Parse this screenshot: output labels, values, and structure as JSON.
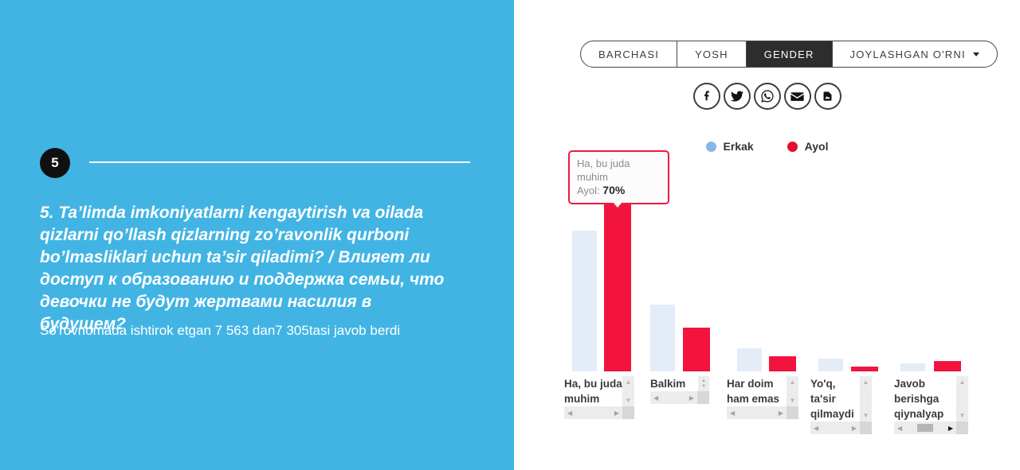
{
  "left_panel": {
    "badge": "5",
    "question": "5. Ta’limda imkoniyatlarni kengaytirish va oilada qizlarni qo’llash qizlarning zo’ravonlik qurboni bo’lmasliklari uchun ta’sir qiladimi? / Влияет ли доступ к образованию и поддержка семьи, что девочки не будут жертвами насилия в будущем?",
    "response_note": "So'rovnomada ishtirok etgan 7 563 dan7 305tasi javob berdi",
    "background_color": "#41b4e4"
  },
  "tabs": {
    "items": [
      {
        "label": "BARCHASI",
        "active": false
      },
      {
        "label": "YOSH",
        "active": false
      },
      {
        "label": "GENDER",
        "active": true
      },
      {
        "label": "JOYLASHGAN O'RNI",
        "active": false,
        "has_dropdown": true
      }
    ],
    "active_bg": "#2d2d2d"
  },
  "share": {
    "icons": [
      "facebook",
      "twitter",
      "whatsapp",
      "email",
      "image-file"
    ]
  },
  "tooltip": {
    "category": "Ha, bu juda muhim",
    "series_label": "Ayol:",
    "value": "70%",
    "border_color": "#ee1b3d"
  },
  "chart_data": {
    "type": "bar",
    "categories": [
      "Ha, bu juda muhim",
      "Balkim",
      "Har doim ham emas",
      "Yo'q, ta'sir qilmaydi",
      "Javob berishga qiynalyap"
    ],
    "series": [
      {
        "name": "Erkak",
        "bar_color": "#e4ecf7",
        "legend_color": "#85b7e9",
        "values": [
          55,
          26,
          9,
          5,
          3
        ]
      },
      {
        "name": "Ayol",
        "bar_color": "#f2143e",
        "legend_color": "#e60c2d",
        "values": [
          70,
          17,
          6,
          2,
          4
        ]
      }
    ],
    "unit": "%",
    "ylim": [
      0,
      100
    ],
    "grid": false,
    "legend_position": "top",
    "labeled_point": "Ha, bu juda muhim / Ayol: 70%"
  }
}
